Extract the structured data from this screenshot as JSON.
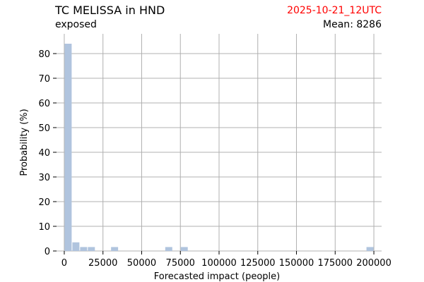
{
  "header": {
    "title": "TC MELISSA in HND",
    "subtitle": "exposed",
    "timestamp": "2025-10-21_12UTC",
    "timestamp_color": "#ff0000",
    "mean_label": "Mean",
    "mean_value": "8286"
  },
  "chart_data": {
    "type": "bar",
    "title": "TC MELISSA in HND",
    "subtitle": "exposed",
    "xlabel": "Forecasted impact (people)",
    "ylabel": "Probability (%)",
    "xlim": [
      -5000,
      205000
    ],
    "ylim": [
      0,
      88
    ],
    "xticks": [
      0,
      25000,
      50000,
      75000,
      100000,
      125000,
      150000,
      175000,
      200000
    ],
    "xtick_labels": [
      "0",
      "25000",
      "50000",
      "75000",
      "100000",
      "125000",
      "150000",
      "175000",
      "200000"
    ],
    "yticks": [
      0,
      10,
      20,
      30,
      40,
      50,
      60,
      70,
      80
    ],
    "ytick_labels": [
      "0",
      "10",
      "20",
      "30",
      "40",
      "50",
      "60",
      "70",
      "80"
    ],
    "grid": true,
    "bar_color": "#b0c4de",
    "bin_width": 5000,
    "bins": [
      {
        "x": 0,
        "value": 84
      },
      {
        "x": 5000,
        "value": 3.5
      },
      {
        "x": 10000,
        "value": 1.6
      },
      {
        "x": 15000,
        "value": 1.6
      },
      {
        "x": 20000,
        "value": 0
      },
      {
        "x": 25000,
        "value": 0
      },
      {
        "x": 30000,
        "value": 1.6
      },
      {
        "x": 65000,
        "value": 1.6
      },
      {
        "x": 75000,
        "value": 1.6
      },
      {
        "x": 195000,
        "value": 1.6
      }
    ]
  }
}
